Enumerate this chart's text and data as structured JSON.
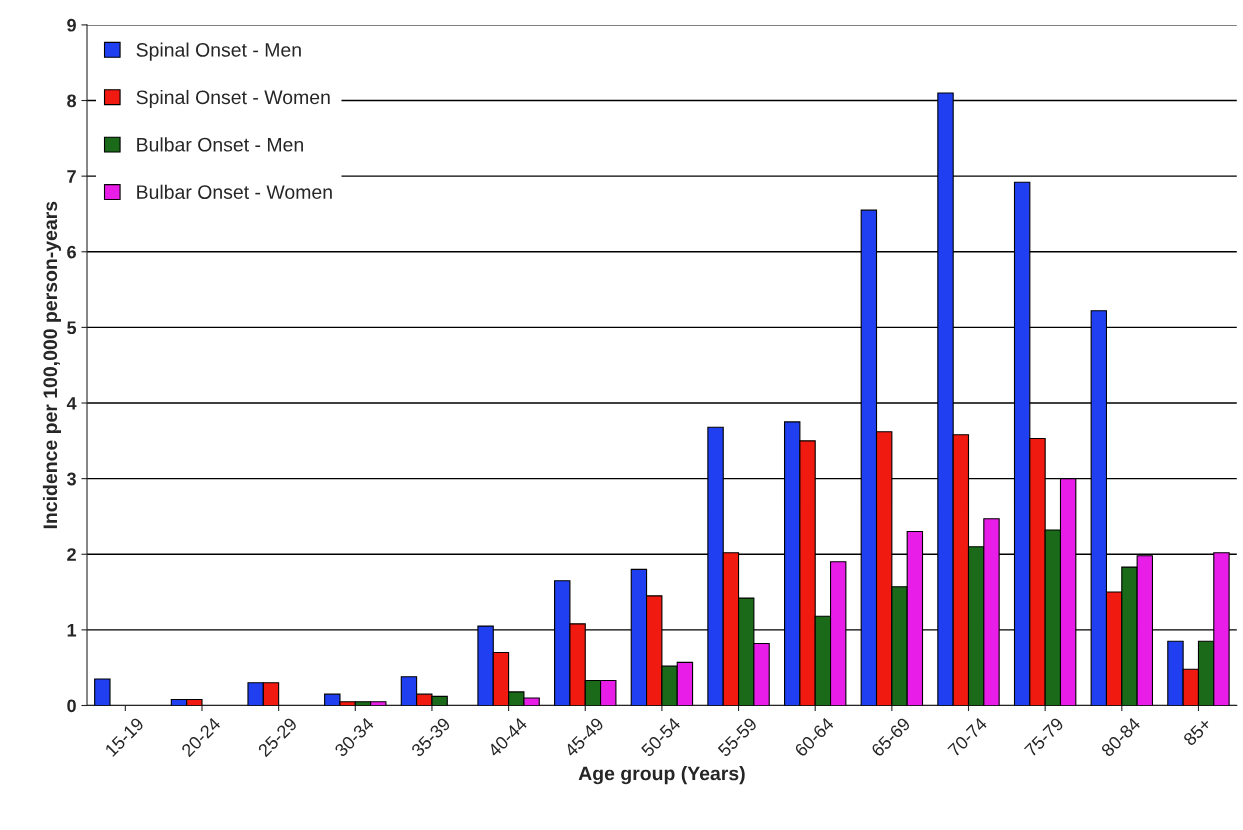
{
  "chart_data": {
    "type": "bar",
    "xlabel": "Age group (Years)",
    "ylabel": "Incidence per 100,000 person-years",
    "categories": [
      "15-19",
      "20-24",
      "25-29",
      "30-34",
      "35-39",
      "40-44",
      "45-49",
      "50-54",
      "55-59",
      "60-64",
      "65-69",
      "70-74",
      "75-79",
      "80-84",
      "85+"
    ],
    "series": [
      {
        "name": "Spinal Onset - Men",
        "color": "#1f3ff0",
        "values": [
          0.35,
          0.08,
          0.3,
          0.15,
          0.38,
          1.05,
          1.65,
          1.8,
          3.68,
          3.75,
          6.55,
          8.1,
          6.92,
          5.22,
          0.85
        ]
      },
      {
        "name": "Spinal Onset - Women",
        "color": "#f01a10",
        "values": [
          null,
          0.08,
          0.3,
          0.05,
          0.15,
          0.7,
          1.08,
          1.45,
          2.02,
          3.5,
          3.62,
          3.58,
          3.53,
          1.5,
          0.48
        ]
      },
      {
        "name": "Bulbar Onset - Men",
        "color": "#1a6a1a",
        "values": [
          null,
          null,
          null,
          0.05,
          0.12,
          0.18,
          0.33,
          0.52,
          1.42,
          1.18,
          1.57,
          2.1,
          2.32,
          1.83,
          0.85
        ]
      },
      {
        "name": "Bulbar Onset - Women",
        "color": "#e81ee8",
        "values": [
          null,
          null,
          null,
          0.05,
          null,
          0.1,
          0.33,
          0.57,
          0.82,
          1.9,
          2.3,
          2.47,
          3.0,
          1.98,
          2.02
        ]
      }
    ],
    "ylim": [
      0,
      9
    ],
    "yticks": [
      0,
      1,
      2,
      3,
      4,
      5,
      6,
      7,
      8,
      9
    ],
    "grid": "y",
    "legend": "top left"
  }
}
